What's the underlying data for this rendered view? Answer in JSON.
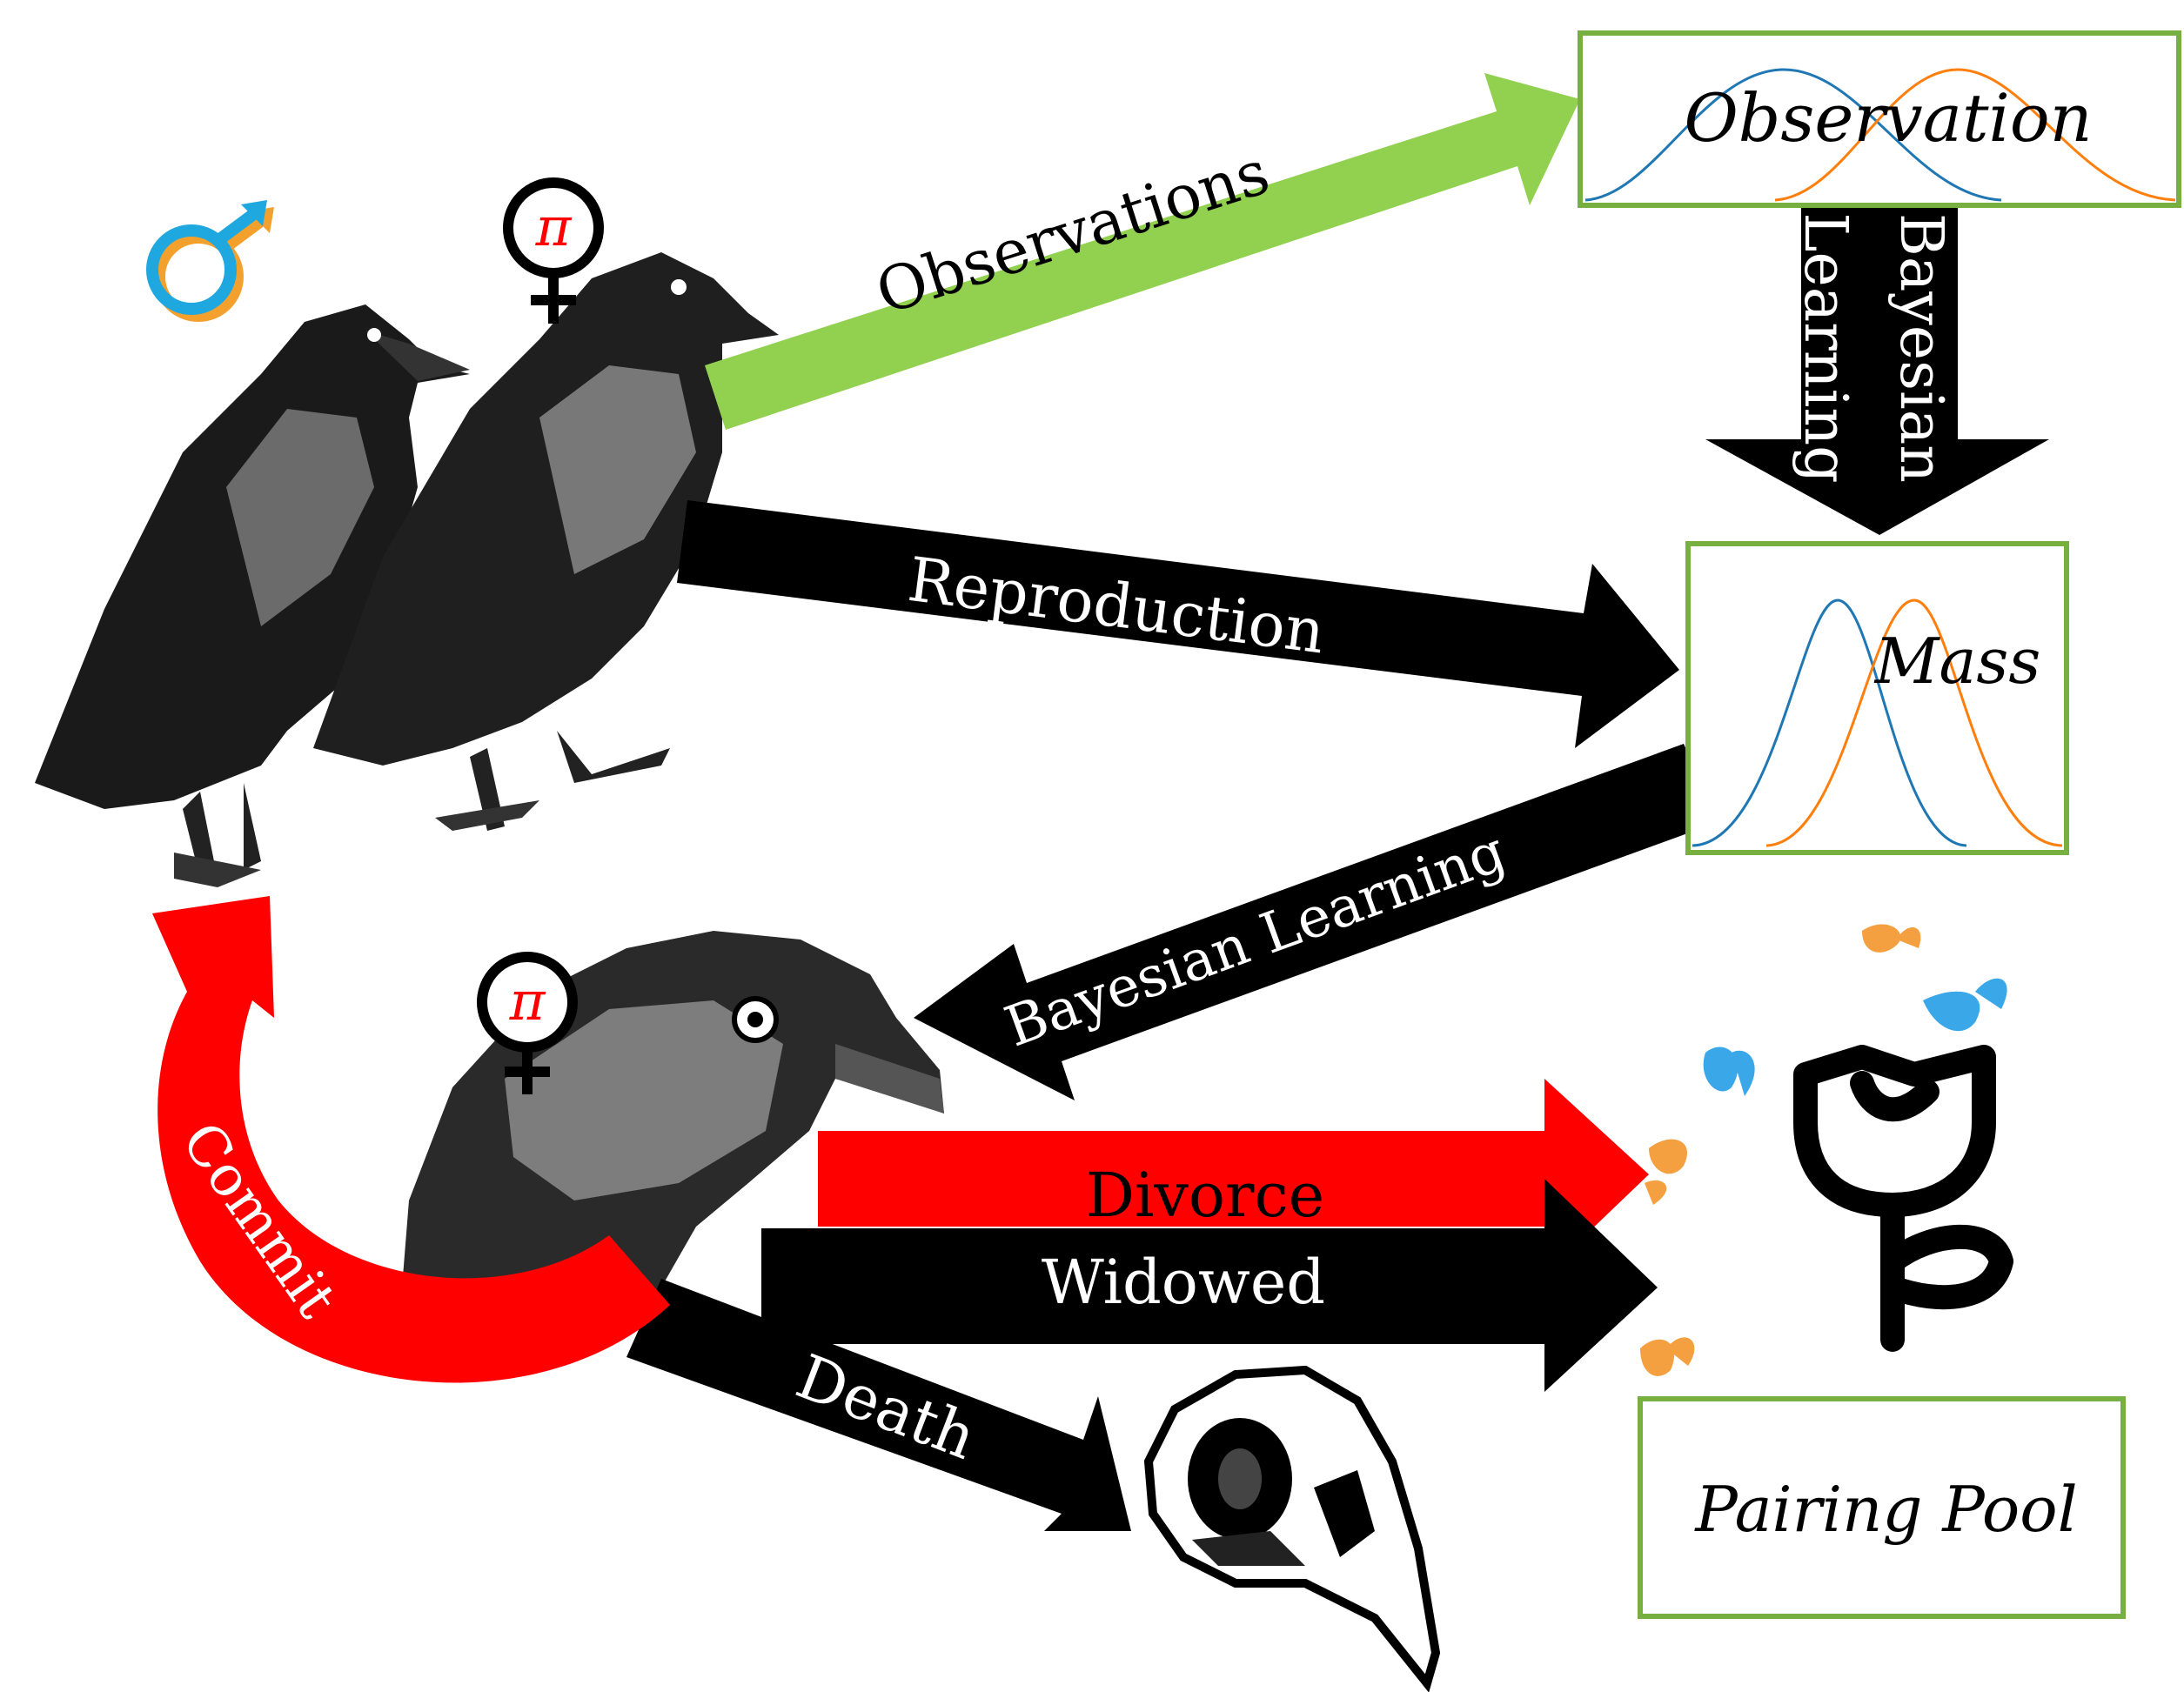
{
  "arrows": {
    "observations": "Observations",
    "bayesian_learning_vertical_line1": "Bayesian",
    "bayesian_learning_vertical_line2": "Learning",
    "reproduction": "Reproduction",
    "bayesian_learning": "Bayesian Learning",
    "divorce": "Divorce",
    "widowed": "Widowed",
    "death": "Death",
    "commit": "Commit"
  },
  "boxes": {
    "observation": "Observation",
    "mass": "Mass",
    "pairing_pool": "Pairing Pool"
  },
  "symbols": {
    "pi_top": "π",
    "pi_bottom": "π"
  },
  "colors": {
    "green": "#92d050",
    "red": "#ff0000",
    "black": "#000000",
    "blue_curve": "#1f77b4",
    "orange_curve": "#ff7f0e",
    "box_border": "#77b041"
  }
}
